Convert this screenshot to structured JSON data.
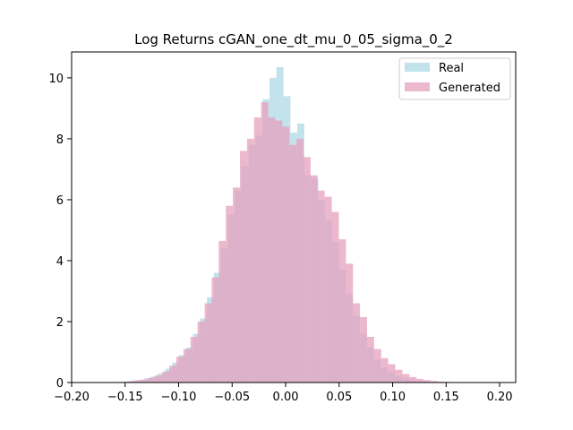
{
  "chart_data": {
    "type": "bar",
    "title": "Log Returns cGAN_one_dt_mu_0_05_sigma_0_2",
    "xlabel": "",
    "ylabel": "",
    "xlim": [
      -0.2,
      0.215
    ],
    "ylim": [
      0,
      10.85
    ],
    "xticks": [
      -0.2,
      -0.15,
      -0.1,
      -0.05,
      0.0,
      0.05,
      0.1,
      0.15,
      0.2
    ],
    "xtick_labels": [
      "−0.20",
      "−0.15",
      "−0.10",
      "−0.05",
      "0.00",
      "0.05",
      "0.10",
      "0.15",
      "0.20"
    ],
    "yticks": [
      0,
      2,
      4,
      6,
      8,
      10
    ],
    "ytick_labels": [
      "0",
      "2",
      "4",
      "6",
      "8",
      "10"
    ],
    "legend_position": "top-right",
    "grid": false,
    "series": [
      {
        "name": "Real",
        "color": "#add8e6",
        "bin_width": 0.0065,
        "bin_centers": [
          -0.1548,
          -0.1483,
          -0.1418,
          -0.1353,
          -0.1288,
          -0.1223,
          -0.1158,
          -0.1093,
          -0.1028,
          -0.0963,
          -0.0898,
          -0.0833,
          -0.0768,
          -0.0703,
          -0.0638,
          -0.0573,
          -0.0508,
          -0.0443,
          -0.0378,
          -0.0313,
          -0.0248,
          -0.0183,
          -0.0118,
          -0.0053,
          0.0012,
          0.0077,
          0.0142,
          0.0207,
          0.0272,
          0.0337,
          0.0402,
          0.0467,
          0.0532,
          0.0597,
          0.0662,
          0.0727,
          0.0792,
          0.0857,
          0.0922,
          0.0987,
          0.1052,
          0.1117,
          0.1182,
          0.1247,
          0.1312,
          0.1377,
          0.1442,
          0.1507,
          0.1572,
          0.1637
        ],
        "values": [
          0.02,
          0.03,
          0.06,
          0.09,
          0.14,
          0.2,
          0.3,
          0.45,
          0.65,
          0.9,
          1.15,
          1.6,
          2.1,
          2.8,
          3.6,
          4.4,
          5.5,
          6.3,
          7.1,
          7.8,
          8.1,
          9.3,
          10.0,
          10.35,
          9.4,
          8.2,
          8.5,
          6.8,
          6.7,
          6.0,
          5.3,
          4.6,
          3.7,
          2.9,
          2.2,
          1.6,
          1.15,
          0.75,
          0.5,
          0.35,
          0.22,
          0.14,
          0.08,
          0.05,
          0.03,
          0.02,
          0.01,
          0.01,
          0.005,
          0.005
        ]
      },
      {
        "name": "Generated",
        "color": "#e6a0be",
        "bin_width": 0.0066,
        "bin_centers": [
          -0.1582,
          -0.1516,
          -0.145,
          -0.1384,
          -0.1318,
          -0.1252,
          -0.1186,
          -0.112,
          -0.1054,
          -0.0988,
          -0.0922,
          -0.0856,
          -0.079,
          -0.0724,
          -0.0658,
          -0.0592,
          -0.0526,
          -0.046,
          -0.0394,
          -0.0328,
          -0.0262,
          -0.0196,
          -0.013,
          -0.0064,
          0.0002,
          0.0068,
          0.0134,
          0.02,
          0.0266,
          0.0332,
          0.0398,
          0.0464,
          0.053,
          0.0596,
          0.0662,
          0.0728,
          0.0794,
          0.086,
          0.0926,
          0.0992,
          0.1058,
          0.1124,
          0.119,
          0.1256,
          0.1322,
          0.1388,
          0.1454,
          0.152,
          0.1586
        ],
        "values": [
          0.01,
          0.02,
          0.04,
          0.07,
          0.1,
          0.16,
          0.24,
          0.36,
          0.55,
          0.85,
          1.1,
          1.5,
          2.0,
          2.6,
          3.45,
          4.65,
          5.8,
          6.4,
          7.6,
          8.0,
          8.7,
          9.2,
          8.7,
          8.6,
          8.4,
          7.8,
          8.0,
          7.4,
          6.8,
          6.3,
          6.1,
          5.6,
          4.7,
          3.9,
          2.6,
          2.15,
          1.5,
          1.1,
          0.8,
          0.6,
          0.42,
          0.28,
          0.18,
          0.12,
          0.08,
          0.05,
          0.03,
          0.02,
          0.01
        ]
      }
    ]
  }
}
